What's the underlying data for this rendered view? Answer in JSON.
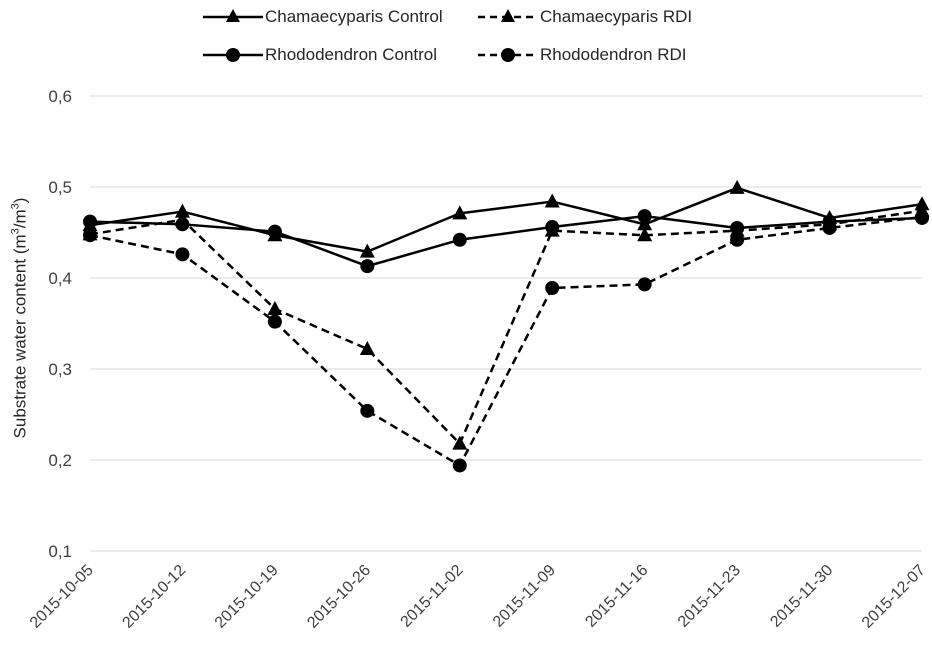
{
  "chart_data": {
    "type": "line",
    "title": "",
    "xlabel": "",
    "ylabel_main": "Substrate water content (m",
    "ylabel_sup1": "3",
    "ylabel_mid": "/m",
    "ylabel_sup2": "3",
    "ylabel_end": ")",
    "ylim": [
      0.1,
      0.6
    ],
    "yticks": [
      0.1,
      0.2,
      0.3,
      0.4,
      0.5,
      0.6
    ],
    "ytick_labels": [
      "0,1",
      "0,2",
      "0,3",
      "0,4",
      "0,5",
      "0,6"
    ],
    "grid": "horizontal",
    "legend_position": "top",
    "categories": [
      "2015-10-05",
      "2015-10-12",
      "2015-10-19",
      "2015-10-26",
      "2015-11-02",
      "2015-11-09",
      "2015-11-16",
      "2015-11-23",
      "2015-11-30",
      "2015-12-07"
    ],
    "series": [
      {
        "name": "Chamaecyparis Control",
        "marker": "triangle",
        "dash": "solid",
        "values": [
          0.458,
          0.473,
          0.447,
          0.429,
          0.471,
          0.484,
          0.459,
          0.499,
          0.466,
          0.481
        ]
      },
      {
        "name": "Chamaecyparis RDI",
        "marker": "triangle",
        "dash": "dashed",
        "values": [
          0.448,
          0.464,
          0.366,
          0.322,
          0.218,
          0.452,
          0.447,
          0.452,
          0.459,
          0.474
        ]
      },
      {
        "name": "Rhododendron Control",
        "marker": "circle",
        "dash": "solid",
        "values": [
          0.462,
          0.459,
          0.451,
          0.413,
          0.442,
          0.456,
          0.468,
          0.455,
          0.462,
          0.466
        ]
      },
      {
        "name": "Rhododendron RDI",
        "marker": "circle",
        "dash": "dashed",
        "values": [
          0.447,
          0.426,
          0.352,
          0.254,
          0.194,
          0.389,
          0.393,
          0.442,
          0.455,
          0.467
        ]
      }
    ],
    "colors": {
      "line": "#000000",
      "grid": "#d9d9d9",
      "text": "#404040"
    }
  }
}
